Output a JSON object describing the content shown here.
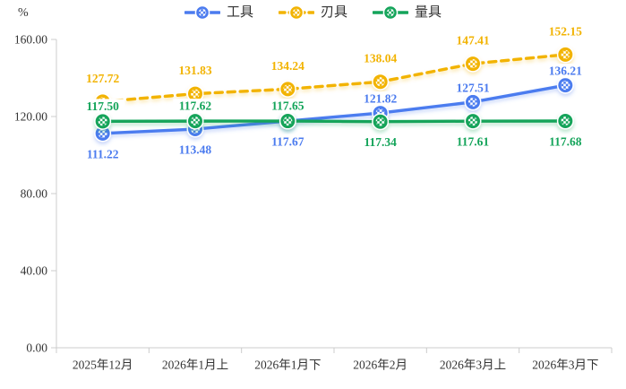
{
  "chart_data": {
    "type": "line",
    "title": "",
    "ylabel": "%",
    "xlabel": "",
    "ylim": [
      0,
      160
    ],
    "yticks": [
      0,
      40,
      80,
      120,
      160
    ],
    "ytick_labels": [
      "0.00",
      "40.00",
      "80.00",
      "120.00",
      "160.00"
    ],
    "grid": false,
    "legend_position": "top",
    "background_color": "#ffffff",
    "axis_color": "#cccccc",
    "text_color": "#333333",
    "categories": [
      "2025年12月",
      "2026年1月上",
      "2026年1月下",
      "2026年2月",
      "2026年3月上",
      "2026年3月下"
    ],
    "series": [
      {
        "name": "工具",
        "color": "#4b7bef",
        "line_style": "solid",
        "marker": "patterned-circle",
        "values": [
          111.22,
          113.48,
          117.67,
          121.82,
          127.51,
          136.21
        ],
        "label_texts": [
          "111.22",
          "113.48",
          "117.67",
          "121.82",
          "127.51",
          "136.21"
        ],
        "label_side": [
          "below",
          "below",
          "below",
          "above",
          "above",
          "above"
        ]
      },
      {
        "name": "刃具",
        "color": "#f2b301",
        "line_style": "dashed",
        "marker": "patterned-circle",
        "values": [
          127.72,
          131.83,
          134.24,
          138.04,
          147.41,
          152.15
        ],
        "label_texts": [
          "127.72",
          "131.83",
          "134.24",
          "138.04",
          "147.41",
          "152.15"
        ],
        "label_side": [
          "above",
          "above",
          "above",
          "above",
          "above",
          "above"
        ]
      },
      {
        "name": "量具",
        "color": "#14a45a",
        "line_style": "solid",
        "marker": "patterned-circle",
        "values": [
          117.5,
          117.62,
          117.65,
          117.34,
          117.61,
          117.68
        ],
        "label_texts": [
          "117.50",
          "117.62",
          "117.65",
          "117.34",
          "117.61",
          "117.68"
        ],
        "label_side": [
          "above",
          "above",
          "above",
          "below",
          "below",
          "below"
        ]
      }
    ]
  }
}
